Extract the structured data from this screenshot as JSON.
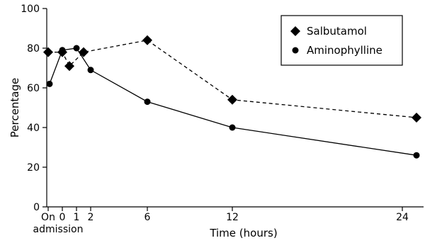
{
  "chart_data": {
    "type": "line",
    "xlabel": "Time (hours)",
    "ylabel": "Percentage",
    "ylim": [
      0,
      100
    ],
    "xlim": [
      -1.1,
      25.5
    ],
    "y_ticks": [
      0,
      20,
      40,
      60,
      80,
      100
    ],
    "x_ticks": [
      {
        "value": -1,
        "label": "On",
        "sublabel": "admission"
      },
      {
        "value": 0,
        "label": "0"
      },
      {
        "value": 1,
        "label": "1"
      },
      {
        "value": 2,
        "label": "2"
      },
      {
        "value": 6,
        "label": "6"
      },
      {
        "value": 12,
        "label": "12"
      },
      {
        "value": 24,
        "label": "24"
      }
    ],
    "grid": false,
    "legend_position": "top-right",
    "series": [
      {
        "name": "Salbutamol",
        "marker": "diamond",
        "line_style": "dashed",
        "color": "#000000",
        "x": [
          -1,
          0,
          0.5,
          1.5,
          6,
          12,
          25
        ],
        "y": [
          78,
          78,
          71,
          78,
          84,
          54,
          45
        ]
      },
      {
        "name": "Aminophylline",
        "marker": "circle",
        "line_style": "solid",
        "color": "#000000",
        "x": [
          -0.9,
          0,
          1,
          2,
          6,
          12,
          25
        ],
        "y": [
          62,
          79,
          80,
          69,
          53,
          40,
          26
        ]
      }
    ]
  }
}
